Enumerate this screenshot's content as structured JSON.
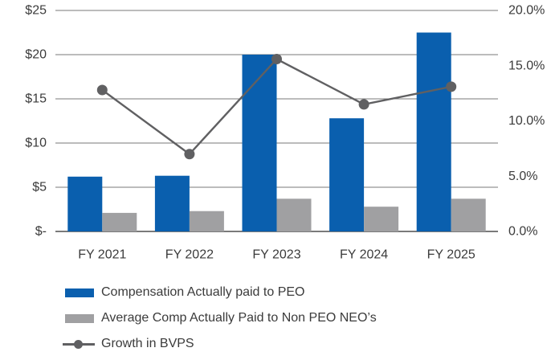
{
  "chart_data": {
    "type": "combo-bar-line",
    "title": "",
    "categories": [
      "FY 2021",
      "FY 2022",
      "FY 2023",
      "FY 2024",
      "FY 2025"
    ],
    "series": [
      {
        "id": "peo",
        "name": "Compensation Actually paid to PEO",
        "type": "bar",
        "axis": "left",
        "color": "#0a5fae",
        "values": [
          6.2,
          6.3,
          20.0,
          12.8,
          22.5
        ]
      },
      {
        "id": "neo",
        "name": "Average Comp Actually Paid to Non PEO NEO’s",
        "type": "bar",
        "axis": "left",
        "color": "#a0a0a2",
        "values": [
          2.1,
          2.3,
          3.7,
          2.8,
          3.7
        ]
      },
      {
        "id": "bvps",
        "name": "Growth in BVPS",
        "type": "line",
        "axis": "right",
        "color": "#606062",
        "values": [
          12.8,
          7.0,
          15.6,
          11.5,
          13.1
        ]
      }
    ],
    "left_axis": {
      "min": 0,
      "max": 25,
      "ticks": [
        {
          "value": 25,
          "label": "$25"
        },
        {
          "value": 20,
          "label": "$20"
        },
        {
          "value": 15,
          "label": "$15"
        },
        {
          "value": 10,
          "label": "$10"
        },
        {
          "value": 5,
          "label": "$5"
        },
        {
          "value": 0,
          "label": "$-"
        }
      ]
    },
    "right_axis": {
      "min": 0,
      "max": 20,
      "ticks": [
        {
          "value": 20,
          "label": "20.0%"
        },
        {
          "value": 15,
          "label": "15.0%"
        },
        {
          "value": 10,
          "label": "10.0%"
        },
        {
          "value": 5,
          "label": "5.0%"
        },
        {
          "value": 0,
          "label": "0.0%"
        }
      ]
    },
    "grid": true,
    "legend_position": "bottom-left",
    "colors": {
      "gridline": "#7a7a7a",
      "baseline": "#7a7a7a",
      "axis_text": "#3b3b3b"
    }
  }
}
